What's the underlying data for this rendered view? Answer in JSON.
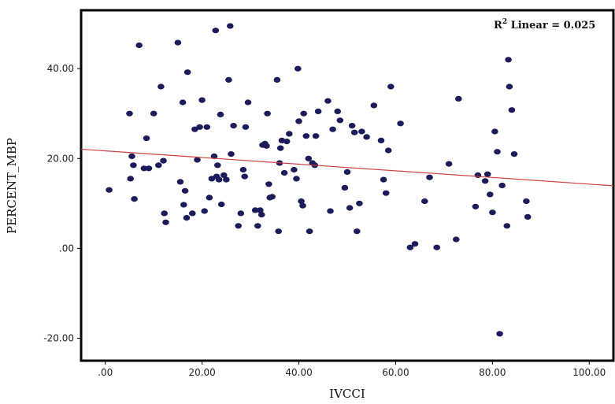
{
  "chart_data": {
    "type": "scatter",
    "title": "",
    "xlabel": "IVCCI",
    "ylabel": "PERCENT_MBP",
    "xlim": [
      -5,
      105
    ],
    "ylim": [
      -25,
      53
    ],
    "x_ticks": [
      0,
      20,
      40,
      60,
      80,
      100
    ],
    "x_tick_labels": [
      ".00",
      "20.00",
      "40.00",
      "60.00",
      "80.00",
      "100.00"
    ],
    "y_ticks": [
      -20,
      0,
      20,
      40
    ],
    "y_tick_labels": [
      "-20.00",
      ".00",
      "20.00",
      "40.00"
    ],
    "grid": false,
    "fit_line": {
      "type": "linear",
      "intercept": 21.7,
      "slope": -0.074
    },
    "annotation": {
      "r2_label": "R",
      "r2_sup": "2",
      "r2_text": " Linear = 0.025"
    },
    "colors": {
      "point": "#1c1c5a",
      "fit_line": "#d04040",
      "frame": "#000000"
    },
    "points": [
      [
        0.8,
        13
      ],
      [
        5,
        30
      ],
      [
        5.2,
        15.5
      ],
      [
        5.5,
        20.5
      ],
      [
        5.8,
        18.5
      ],
      [
        6,
        11
      ],
      [
        7,
        45.2
      ],
      [
        8,
        17.8
      ],
      [
        8.5,
        24.5
      ],
      [
        9,
        17.8
      ],
      [
        10,
        30
      ],
      [
        11,
        18.5
      ],
      [
        11.5,
        36
      ],
      [
        12,
        19.5
      ],
      [
        12.2,
        7.8
      ],
      [
        12.5,
        5.8
      ],
      [
        15,
        45.8
      ],
      [
        15.5,
        14.8
      ],
      [
        16,
        32.5
      ],
      [
        16.2,
        9.7
      ],
      [
        16.5,
        12.8
      ],
      [
        16.8,
        6.8
      ],
      [
        17,
        39.2
      ],
      [
        18,
        7.8
      ],
      [
        18.5,
        26.5
      ],
      [
        19,
        19.7
      ],
      [
        19.5,
        27
      ],
      [
        20,
        33
      ],
      [
        20.5,
        8.3
      ],
      [
        21,
        27
      ],
      [
        21.5,
        11.3
      ],
      [
        22,
        15.5
      ],
      [
        22.5,
        20.5
      ],
      [
        22.8,
        48.5
      ],
      [
        23,
        16
      ],
      [
        23.2,
        18.5
      ],
      [
        23.5,
        15.3
      ],
      [
        23.8,
        29.8
      ],
      [
        24,
        9.8
      ],
      [
        24.5,
        16.3
      ],
      [
        25,
        15.3
      ],
      [
        25.5,
        37.5
      ],
      [
        25.8,
        49.5
      ],
      [
        26,
        21
      ],
      [
        26.5,
        27.3
      ],
      [
        28,
        7.8
      ],
      [
        28.5,
        17.5
      ],
      [
        28.8,
        16
      ],
      [
        29,
        27
      ],
      [
        29.5,
        32.5
      ],
      [
        27.5,
        5
      ],
      [
        31,
        8.5
      ],
      [
        31.5,
        5
      ],
      [
        32,
        8.5
      ],
      [
        32.3,
        7.5
      ],
      [
        32.5,
        23
      ],
      [
        33,
        23.3
      ],
      [
        33.3,
        22.8
      ],
      [
        33.5,
        30
      ],
      [
        33.8,
        14.3
      ],
      [
        34,
        11.3
      ],
      [
        34.5,
        11.5
      ],
      [
        35.5,
        37.5
      ],
      [
        35.8,
        3.8
      ],
      [
        36,
        19
      ],
      [
        36.2,
        22.3
      ],
      [
        36.5,
        24
      ],
      [
        37,
        16.8
      ],
      [
        37.5,
        23.8
      ],
      [
        38,
        25.5
      ],
      [
        39,
        17.5
      ],
      [
        39.5,
        15.5
      ],
      [
        39.8,
        40
      ],
      [
        40,
        28.3
      ],
      [
        40.5,
        10.5
      ],
      [
        40.8,
        9.5
      ],
      [
        41,
        30
      ],
      [
        41.5,
        25
      ],
      [
        42,
        20
      ],
      [
        42.2,
        3.8
      ],
      [
        42.8,
        19
      ],
      [
        43.3,
        18.5
      ],
      [
        43.5,
        25
      ],
      [
        44,
        30.5
      ],
      [
        46,
        32.8
      ],
      [
        46.5,
        8.3
      ],
      [
        47,
        26.5
      ],
      [
        48,
        30.5
      ],
      [
        48.5,
        28.5
      ],
      [
        49.5,
        13.5
      ],
      [
        50,
        17
      ],
      [
        50.5,
        9
      ],
      [
        51,
        27.3
      ],
      [
        51.5,
        25.8
      ],
      [
        52,
        3.8
      ],
      [
        52.5,
        10
      ],
      [
        53,
        26
      ],
      [
        54,
        24.8
      ],
      [
        55.5,
        31.8
      ],
      [
        57,
        24
      ],
      [
        57.5,
        15.3
      ],
      [
        58,
        12.3
      ],
      [
        58.5,
        21.8
      ],
      [
        59,
        36
      ],
      [
        61,
        27.8
      ],
      [
        63,
        0.2
      ],
      [
        64,
        1
      ],
      [
        66,
        10.5
      ],
      [
        67,
        15.8
      ],
      [
        68.5,
        0.2
      ],
      [
        71,
        18.8
      ],
      [
        72.5,
        2
      ],
      [
        73,
        33.3
      ],
      [
        76.5,
        9.3
      ],
      [
        77,
        16.3
      ],
      [
        78.5,
        15
      ],
      [
        79,
        16.5
      ],
      [
        79.5,
        12
      ],
      [
        80,
        8
      ],
      [
        80.5,
        26
      ],
      [
        81,
        21.5
      ],
      [
        81.5,
        -19
      ],
      [
        82,
        14
      ],
      [
        83,
        5
      ],
      [
        83.3,
        42
      ],
      [
        83.5,
        36
      ],
      [
        84,
        30.8
      ],
      [
        84.5,
        21
      ],
      [
        87,
        10.5
      ],
      [
        87.3,
        7
      ]
    ]
  }
}
